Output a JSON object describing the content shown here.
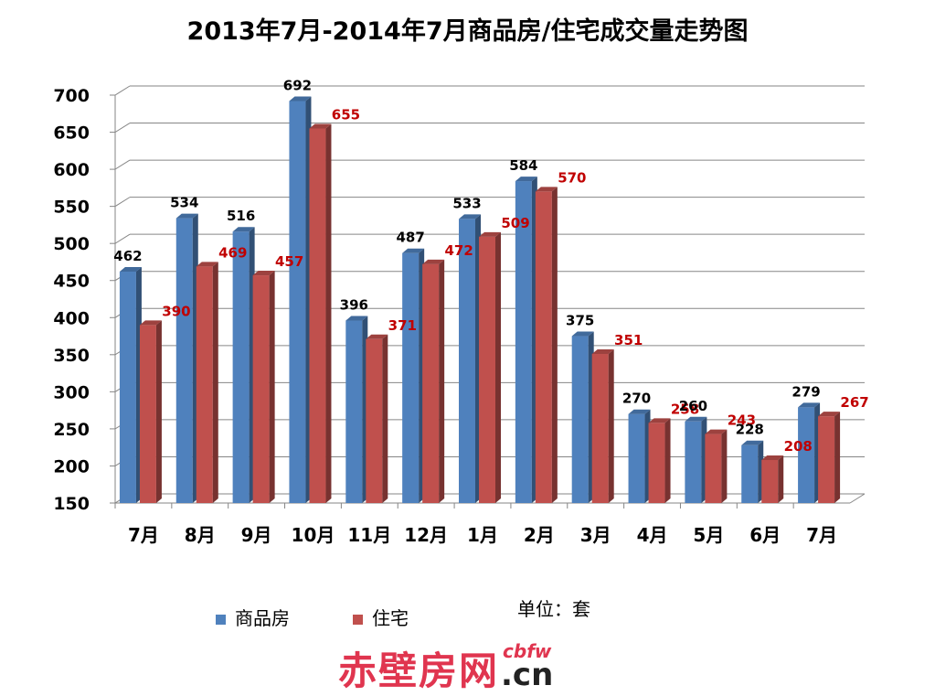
{
  "title": "2013年7月-2014年7月商品房/住宅成交量走势图",
  "chart_data": {
    "type": "bar",
    "title": "2013年7月-2014年7月商品房/住宅成交量走势图",
    "categories": [
      "7月",
      "8月",
      "9月",
      "10月",
      "11月",
      "12月",
      "1月",
      "2月",
      "3月",
      "4月",
      "5月",
      "6月",
      "7月"
    ],
    "series": [
      {
        "name": "商品房",
        "color": "#4f81bd",
        "label_color": "#000000",
        "values": [
          462,
          534,
          516,
          692,
          396,
          487,
          533,
          584,
          375,
          270,
          260,
          228,
          279
        ]
      },
      {
        "name": "住宅",
        "color": "#c0504d",
        "label_color": "#c00000",
        "values": [
          390,
          469,
          457,
          655,
          371,
          472,
          509,
          570,
          351,
          258,
          243,
          208,
          267
        ]
      }
    ],
    "ylim": [
      150,
      700
    ],
    "yticks": [
      150,
      200,
      250,
      300,
      350,
      400,
      450,
      500,
      550,
      600,
      650,
      700
    ],
    "xlabel": "",
    "ylabel": "",
    "grid": true,
    "legend": "bottom-left"
  },
  "unit_note": "单位：套",
  "watermark": {
    "cn": "赤壁房网",
    "small": "cbfw",
    "domain": ".cn"
  }
}
